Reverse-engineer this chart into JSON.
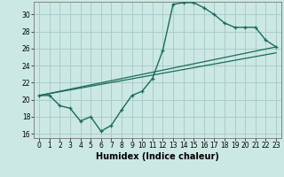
{
  "title": "",
  "xlabel": "Humidex (Indice chaleur)",
  "background_color": "#cce8e4",
  "grid_color": "#aaccca",
  "line_color": "#1a6b5a",
  "xlim": [
    -0.5,
    23.5
  ],
  "ylim": [
    15.5,
    31.5
  ],
  "xticks": [
    0,
    1,
    2,
    3,
    4,
    5,
    6,
    7,
    8,
    9,
    10,
    11,
    12,
    13,
    14,
    15,
    16,
    17,
    18,
    19,
    20,
    21,
    22,
    23
  ],
  "yticks": [
    16,
    18,
    20,
    22,
    24,
    26,
    28,
    30
  ],
  "line1_x": [
    0,
    1,
    2,
    3,
    4,
    5,
    6,
    7,
    8,
    9,
    10,
    11,
    12,
    13,
    14,
    15,
    16,
    17,
    18,
    19,
    20,
    21,
    22,
    23
  ],
  "line1_y": [
    20.5,
    20.5,
    19.3,
    19.0,
    17.5,
    18.0,
    16.3,
    17.0,
    18.8,
    20.5,
    21.0,
    22.5,
    25.8,
    31.2,
    31.4,
    31.4,
    30.8,
    30.0,
    29.0,
    28.5,
    28.5,
    28.5,
    27.0,
    26.2
  ],
  "line2_x": [
    0,
    23
  ],
  "line2_y": [
    20.5,
    26.2
  ],
  "line3_x": [
    0,
    23
  ],
  "line3_y": [
    20.5,
    25.5
  ],
  "tick_fontsize": 5.5,
  "xlabel_fontsize": 7.0,
  "marker_size": 3.5
}
